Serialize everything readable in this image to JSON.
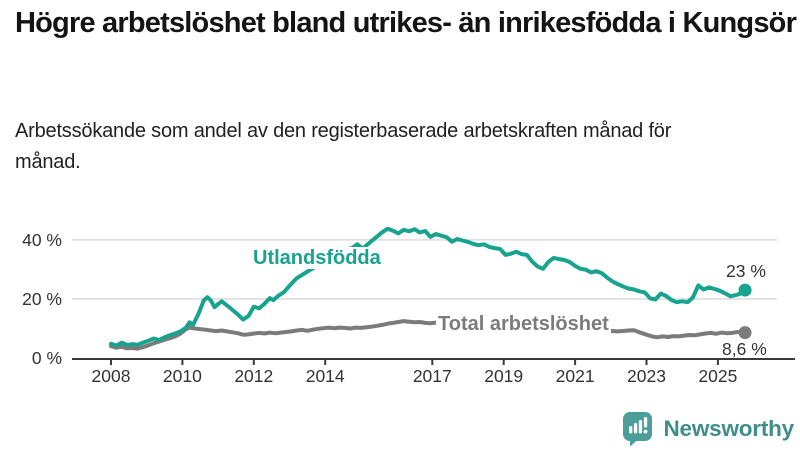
{
  "header": {
    "title": "Högre arbetslöshet bland utrikes- än inrikesfödda i Kungsör",
    "subtitle": "Arbetssökande som andel av den registerbaserade arbetskraften månad för månad."
  },
  "chart_data": {
    "type": "line",
    "title": "Högre arbetslöshet bland utrikes- än inrikesfödda i Kungsör",
    "unit": "%",
    "grid": true,
    "xlim": [
      2008,
      2025.9
    ],
    "ylim": [
      0,
      47
    ],
    "y_ticks": [
      {
        "label": "0 %",
        "value": 0
      },
      {
        "label": "20 %",
        "value": 20
      },
      {
        "label": "40 %",
        "value": 40
      }
    ],
    "x_ticks": [
      {
        "label": "2008",
        "value": 2008
      },
      {
        "label": "2010",
        "value": 2010
      },
      {
        "label": "2012",
        "value": 2012
      },
      {
        "label": "2014",
        "value": 2014
      },
      {
        "label": "2017",
        "value": 2017
      },
      {
        "label": "2019",
        "value": 2019
      },
      {
        "label": "2021",
        "value": 2021
      },
      {
        "label": "2023",
        "value": 2023
      },
      {
        "label": "2025",
        "value": 2025
      }
    ],
    "series": [
      {
        "name": "Total arbetslöshet",
        "color": "#7b7b7b",
        "end_label": "8,6 %",
        "end_value": 8.6,
        "points": [
          [
            2008.0,
            4.0
          ],
          [
            2008.15,
            3.5
          ],
          [
            2008.3,
            3.8
          ],
          [
            2008.45,
            3.3
          ],
          [
            2008.6,
            3.4
          ],
          [
            2008.75,
            3.2
          ],
          [
            2008.9,
            3.7
          ],
          [
            2009.05,
            4.3
          ],
          [
            2009.2,
            5.0
          ],
          [
            2009.35,
            5.6
          ],
          [
            2009.5,
            6.2
          ],
          [
            2009.65,
            6.7
          ],
          [
            2009.8,
            7.3
          ],
          [
            2009.95,
            8.3
          ],
          [
            2010.1,
            9.8
          ],
          [
            2010.2,
            10.3
          ],
          [
            2010.35,
            10.0
          ],
          [
            2010.5,
            9.8
          ],
          [
            2010.65,
            9.6
          ],
          [
            2010.8,
            9.3
          ],
          [
            2010.95,
            9.1
          ],
          [
            2011.1,
            9.3
          ],
          [
            2011.25,
            9.0
          ],
          [
            2011.4,
            8.7
          ],
          [
            2011.55,
            8.4
          ],
          [
            2011.7,
            7.9
          ],
          [
            2011.85,
            8.0
          ],
          [
            2012.0,
            8.3
          ],
          [
            2012.15,
            8.5
          ],
          [
            2012.3,
            8.3
          ],
          [
            2012.45,
            8.6
          ],
          [
            2012.6,
            8.4
          ],
          [
            2012.75,
            8.6
          ],
          [
            2012.9,
            8.8
          ],
          [
            2013.05,
            9.0
          ],
          [
            2013.2,
            9.3
          ],
          [
            2013.35,
            9.5
          ],
          [
            2013.5,
            9.2
          ],
          [
            2013.65,
            9.6
          ],
          [
            2013.8,
            9.9
          ],
          [
            2013.95,
            10.1
          ],
          [
            2014.1,
            10.3
          ],
          [
            2014.25,
            10.1
          ],
          [
            2014.4,
            10.3
          ],
          [
            2014.55,
            10.2
          ],
          [
            2014.7,
            10.0
          ],
          [
            2014.85,
            10.3
          ],
          [
            2015.0,
            10.2
          ],
          [
            2015.15,
            10.4
          ],
          [
            2015.3,
            10.6
          ],
          [
            2015.45,
            10.9
          ],
          [
            2015.6,
            11.2
          ],
          [
            2015.75,
            11.6
          ],
          [
            2015.9,
            11.9
          ],
          [
            2016.05,
            12.2
          ],
          [
            2016.2,
            12.5
          ],
          [
            2016.35,
            12.3
          ],
          [
            2016.5,
            12.1
          ],
          [
            2016.65,
            12.2
          ],
          [
            2016.8,
            11.9
          ],
          [
            2016.95,
            11.8
          ],
          [
            2017.1,
            12.0
          ],
          [
            2017.4,
            11.7
          ],
          [
            2017.7,
            11.4
          ],
          [
            2018.0,
            11.2
          ],
          [
            2018.3,
            11.0
          ],
          [
            2018.6,
            10.8
          ],
          [
            2018.9,
            10.5
          ],
          [
            2019.2,
            10.2
          ],
          [
            2019.5,
            10.0
          ],
          [
            2019.8,
            9.8
          ],
          [
            2020.1,
            10.2
          ],
          [
            2020.4,
            10.9
          ],
          [
            2020.7,
            10.7
          ],
          [
            2021.0,
            10.2
          ],
          [
            2021.3,
            9.8
          ],
          [
            2021.6,
            9.5
          ],
          [
            2021.9,
            9.2
          ],
          [
            2022.2,
            9.0
          ],
          [
            2022.5,
            9.3
          ],
          [
            2022.65,
            9.4
          ],
          [
            2022.8,
            8.7
          ],
          [
            2023.0,
            7.9
          ],
          [
            2023.15,
            7.3
          ],
          [
            2023.3,
            7.0
          ],
          [
            2023.45,
            7.3
          ],
          [
            2023.6,
            7.1
          ],
          [
            2023.75,
            7.4
          ],
          [
            2023.9,
            7.3
          ],
          [
            2024.05,
            7.6
          ],
          [
            2024.2,
            7.8
          ],
          [
            2024.35,
            7.7
          ],
          [
            2024.5,
            8.0
          ],
          [
            2024.65,
            8.3
          ],
          [
            2024.8,
            8.5
          ],
          [
            2024.95,
            8.2
          ],
          [
            2025.1,
            8.6
          ],
          [
            2025.25,
            8.4
          ],
          [
            2025.4,
            8.5
          ],
          [
            2025.55,
            8.8
          ],
          [
            2025.76,
            8.6
          ]
        ]
      },
      {
        "name": "Utlandsfödda",
        "color": "#18a38f",
        "end_label": "23 %",
        "end_value": 23,
        "points": [
          [
            2008.0,
            4.8
          ],
          [
            2008.15,
            4.2
          ],
          [
            2008.3,
            5.2
          ],
          [
            2008.45,
            4.4
          ],
          [
            2008.6,
            4.7
          ],
          [
            2008.75,
            4.5
          ],
          [
            2008.9,
            5.2
          ],
          [
            2009.05,
            5.9
          ],
          [
            2009.2,
            6.6
          ],
          [
            2009.35,
            6.1
          ],
          [
            2009.5,
            7.0
          ],
          [
            2009.65,
            7.7
          ],
          [
            2009.8,
            8.3
          ],
          [
            2009.95,
            9.0
          ],
          [
            2010.1,
            10.3
          ],
          [
            2010.2,
            12.1
          ],
          [
            2010.3,
            11.2
          ],
          [
            2010.45,
            15.0
          ],
          [
            2010.6,
            19.5
          ],
          [
            2010.7,
            20.6
          ],
          [
            2010.8,
            19.4
          ],
          [
            2010.9,
            17.2
          ],
          [
            2011.0,
            18.3
          ],
          [
            2011.1,
            19.2
          ],
          [
            2011.25,
            17.8
          ],
          [
            2011.4,
            16.3
          ],
          [
            2011.55,
            14.8
          ],
          [
            2011.7,
            13.0
          ],
          [
            2011.85,
            14.2
          ],
          [
            2012.0,
            17.4
          ],
          [
            2012.15,
            16.8
          ],
          [
            2012.3,
            18.4
          ],
          [
            2012.45,
            20.3
          ],
          [
            2012.55,
            19.6
          ],
          [
            2012.7,
            21.2
          ],
          [
            2012.85,
            22.3
          ],
          [
            2013.0,
            24.5
          ],
          [
            2013.2,
            27.0
          ],
          [
            2013.4,
            28.5
          ],
          [
            2013.6,
            30.0
          ],
          [
            2013.8,
            31.5
          ],
          [
            2014.0,
            33.5
          ],
          [
            2014.2,
            35.5
          ],
          [
            2014.4,
            36.3
          ],
          [
            2014.6,
            36.8
          ],
          [
            2014.75,
            37.2
          ],
          [
            2014.9,
            38.5
          ],
          [
            2015.05,
            37.0
          ],
          [
            2015.2,
            38.6
          ],
          [
            2015.4,
            40.6
          ],
          [
            2015.6,
            42.6
          ],
          [
            2015.75,
            43.8
          ],
          [
            2015.9,
            43.1
          ],
          [
            2016.05,
            42.2
          ],
          [
            2016.2,
            43.4
          ],
          [
            2016.35,
            42.9
          ],
          [
            2016.5,
            43.6
          ],
          [
            2016.65,
            42.5
          ],
          [
            2016.8,
            43.0
          ],
          [
            2016.95,
            41.0
          ],
          [
            2017.1,
            42.0
          ],
          [
            2017.25,
            41.4
          ],
          [
            2017.4,
            40.9
          ],
          [
            2017.55,
            39.4
          ],
          [
            2017.7,
            40.3
          ],
          [
            2017.85,
            39.8
          ],
          [
            2018.0,
            39.3
          ],
          [
            2018.15,
            38.6
          ],
          [
            2018.3,
            38.2
          ],
          [
            2018.45,
            38.5
          ],
          [
            2018.6,
            37.6
          ],
          [
            2018.75,
            37.2
          ],
          [
            2018.9,
            36.9
          ],
          [
            2019.05,
            34.9
          ],
          [
            2019.2,
            35.3
          ],
          [
            2019.35,
            36.0
          ],
          [
            2019.5,
            35.2
          ],
          [
            2019.65,
            34.9
          ],
          [
            2019.8,
            32.6
          ],
          [
            2019.95,
            31.0
          ],
          [
            2020.1,
            30.2
          ],
          [
            2020.25,
            32.5
          ],
          [
            2020.4,
            33.9
          ],
          [
            2020.55,
            33.5
          ],
          [
            2020.7,
            33.2
          ],
          [
            2020.85,
            32.5
          ],
          [
            2021.0,
            31.2
          ],
          [
            2021.15,
            30.2
          ],
          [
            2021.3,
            29.9
          ],
          [
            2021.45,
            29.0
          ],
          [
            2021.6,
            29.4
          ],
          [
            2021.75,
            28.7
          ],
          [
            2021.9,
            27.2
          ],
          [
            2022.05,
            25.9
          ],
          [
            2022.2,
            25.0
          ],
          [
            2022.35,
            24.2
          ],
          [
            2022.5,
            23.5
          ],
          [
            2022.65,
            23.2
          ],
          [
            2022.8,
            22.6
          ],
          [
            2022.95,
            22.2
          ],
          [
            2023.1,
            20.2
          ],
          [
            2023.25,
            19.8
          ],
          [
            2023.4,
            21.8
          ],
          [
            2023.55,
            21.0
          ],
          [
            2023.7,
            19.6
          ],
          [
            2023.85,
            18.9
          ],
          [
            2024.0,
            19.2
          ],
          [
            2024.15,
            18.9
          ],
          [
            2024.3,
            20.5
          ],
          [
            2024.45,
            24.6
          ],
          [
            2024.6,
            23.2
          ],
          [
            2024.75,
            23.9
          ],
          [
            2024.9,
            23.4
          ],
          [
            2025.05,
            22.8
          ],
          [
            2025.2,
            21.9
          ],
          [
            2025.35,
            20.9
          ],
          [
            2025.5,
            21.3
          ],
          [
            2025.65,
            21.9
          ],
          [
            2025.76,
            23.0
          ]
        ]
      }
    ]
  },
  "branding": {
    "logo_text": "Newsworthy",
    "bubble_color": "#4b9e99",
    "text_color": "#3e8e8a"
  }
}
